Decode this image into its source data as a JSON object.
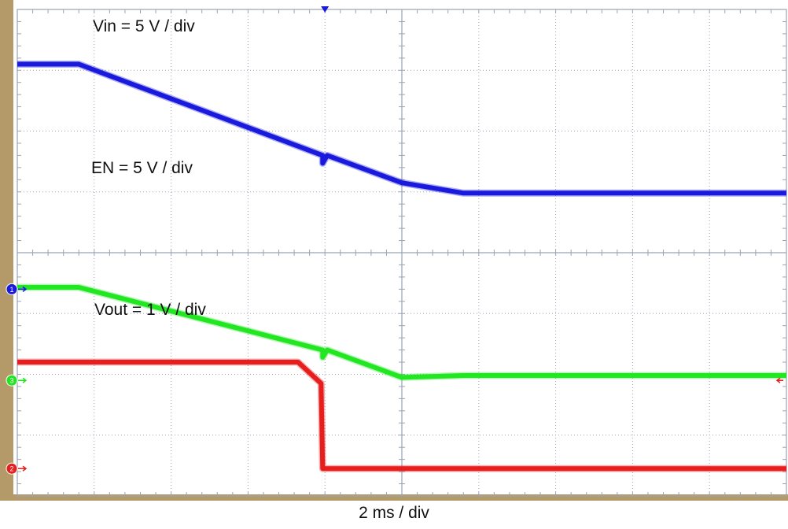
{
  "chart_data": {
    "type": "line",
    "x_unit": "div",
    "y_unit": "div",
    "xlim": [
      0,
      10
    ],
    "ylim": [
      0,
      8
    ],
    "grid": true,
    "background": "#ffffff",
    "grid_color": "#9aa4b4",
    "bezel_color": "#b39a68",
    "trigger_marker_x": 4.0,
    "time_label": "2 ms / div",
    "series": [
      {
        "name": "Vin = 5 V / div",
        "color": "#1a1adc",
        "channel": "1",
        "ground_level": 3.4,
        "points": [
          [
            0,
            7.1
          ],
          [
            0.8,
            7.1
          ],
          [
            3.97,
            5.6
          ],
          [
            3.97,
            5.47
          ],
          [
            4.03,
            5.6
          ],
          [
            5.0,
            5.15
          ],
          [
            5.8,
            4.98
          ],
          [
            10,
            4.98
          ]
        ]
      },
      {
        "name": "EN = 5 V / div",
        "color": "#22e622",
        "channel": "3",
        "ground_level": 1.9,
        "points": [
          [
            0,
            3.43
          ],
          [
            0.8,
            3.43
          ],
          [
            3.97,
            2.4
          ],
          [
            3.97,
            2.28
          ],
          [
            4.03,
            2.4
          ],
          [
            5.0,
            1.95
          ],
          [
            5.8,
            1.98
          ],
          [
            10,
            1.98
          ]
        ]
      },
      {
        "name": "Vout = 1 V / div",
        "color": "#e61e1e",
        "channel": "2",
        "ground_level": 0.45,
        "points": [
          [
            0,
            2.2
          ],
          [
            3.65,
            2.2
          ],
          [
            3.95,
            1.85
          ],
          [
            3.97,
            0.45
          ],
          [
            10,
            0.45
          ]
        ]
      }
    ]
  }
}
